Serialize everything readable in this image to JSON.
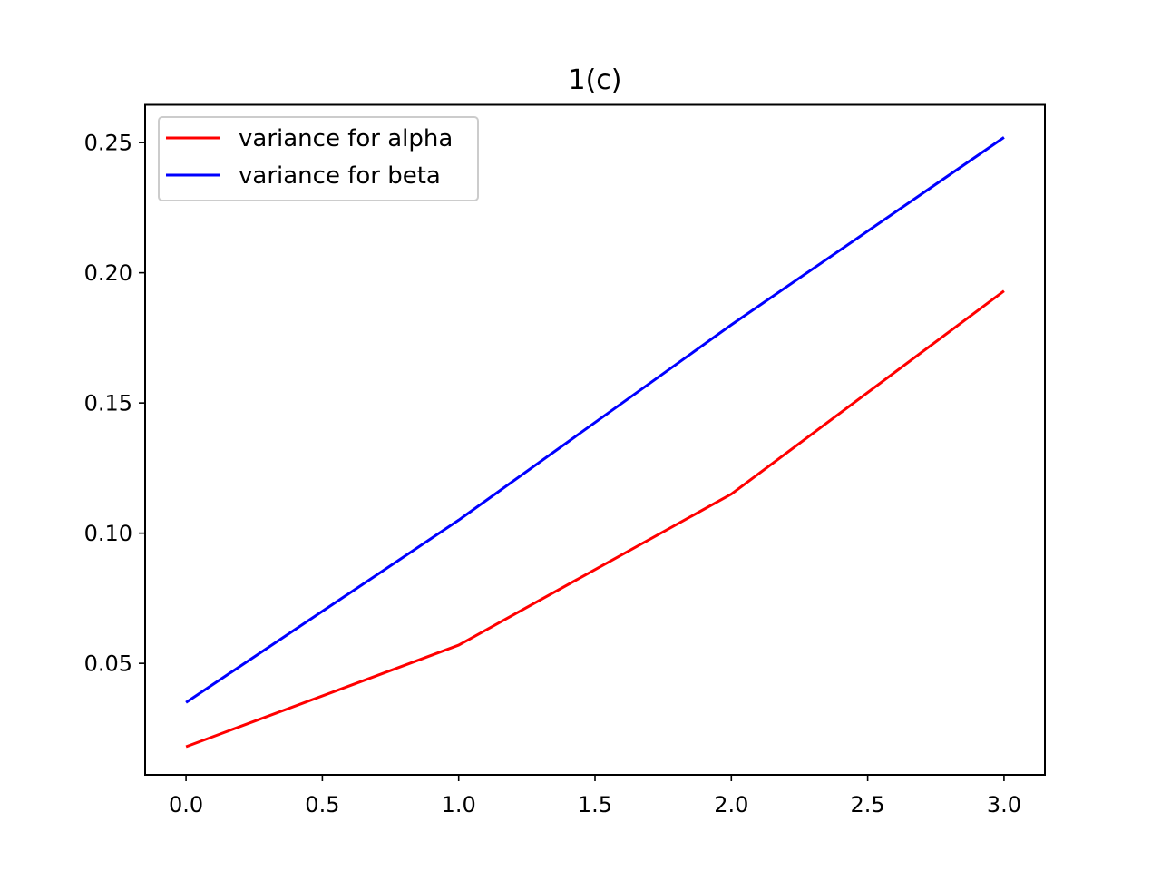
{
  "chart_data": {
    "type": "line",
    "title": "1(c)",
    "xlabel": "",
    "ylabel": "",
    "x": [
      0,
      1,
      2,
      3
    ],
    "xlim": [
      -0.15,
      3.15
    ],
    "ylim": [
      0.0072,
      0.2645
    ],
    "xticks": [
      0.0,
      0.5,
      1.0,
      1.5,
      2.0,
      2.5,
      3.0
    ],
    "xtick_labels": [
      "0.0",
      "0.5",
      "1.0",
      "1.5",
      "2.0",
      "2.5",
      "3.0"
    ],
    "yticks": [
      0.05,
      0.1,
      0.15,
      0.2,
      0.25
    ],
    "ytick_labels": [
      "0.05",
      "0.10",
      "0.15",
      "0.20",
      "0.25"
    ],
    "grid": false,
    "legend_position": "upper-left",
    "series": [
      {
        "name": "variance for alpha",
        "color": "#ff0000",
        "values": [
          0.018,
          0.057,
          0.115,
          0.193
        ]
      },
      {
        "name": "variance for beta",
        "color": "#0000ff",
        "values": [
          0.035,
          0.105,
          0.18,
          0.252
        ]
      }
    ]
  }
}
